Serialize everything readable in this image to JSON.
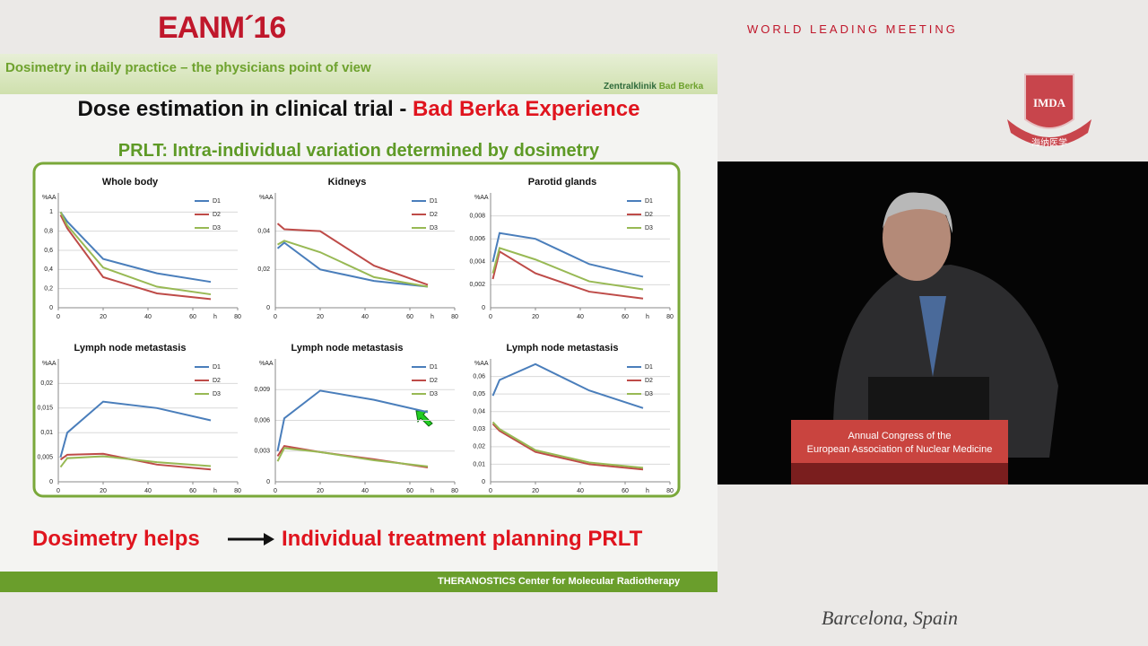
{
  "header": {
    "brand": "EANM´16",
    "tagline": "WORLD LEADING MEETING",
    "logo": "IMDA",
    "logo_subtitle": "海纳医学"
  },
  "slide": {
    "topic": "Dosimetry in daily practice – the physicians point of view",
    "clinic": "Zentralklinik",
    "clinic_place": "Bad Berka",
    "title": "Dose estimation in clinical trial -",
    "title_highlight": "Bad Berka Experience",
    "subtitle": "PRLT: Intra-individual variation determined by dosimetry",
    "conclusion_left": "Dosimetry helps",
    "conclusion_right": "Individual treatment planning PRLT",
    "footer": "THERANOSTICS Center for Molecular Radiotherapy",
    "charts": [
      {
        "type": "line",
        "title": "Whole body",
        "ylabel": "%AA",
        "xlabel": "h",
        "x": [
          1,
          4,
          20,
          44,
          68
        ],
        "xlim": [
          0,
          80
        ],
        "xticks": [
          0,
          20,
          40,
          60,
          80
        ],
        "ylim": [
          0,
          1.2
        ],
        "yticks": [
          0,
          {
            "value": 0.2,
            "label": "0,2"
          },
          {
            "value": 0.4,
            "label": "0,4"
          },
          {
            "value": 0.6,
            "label": "0,6"
          },
          {
            "value": 0.8,
            "label": "0,8"
          },
          1
        ],
        "series": [
          {
            "name": "D1",
            "color": "#4a7ebb",
            "values": [
              1,
              0.9,
              0.51,
              0.36,
              0.27
            ]
          },
          {
            "name": "D2",
            "color": "#be4b48",
            "values": [
              0.97,
              0.83,
              0.32,
              0.15,
              0.09
            ]
          },
          {
            "name": "D3",
            "color": "#98b954",
            "values": [
              1,
              0.86,
              0.42,
              0.22,
              0.14
            ]
          }
        ]
      },
      {
        "type": "line",
        "title": "Kidneys",
        "ylabel": "%AA",
        "xlabel": "h",
        "x": [
          1,
          4,
          20,
          44,
          68
        ],
        "xlim": [
          0,
          80
        ],
        "xticks": [
          0,
          20,
          40,
          60,
          80
        ],
        "ylim": [
          0,
          0.06
        ],
        "yticks": [
          0,
          {
            "value": 0.02,
            "label": "0,02"
          },
          {
            "value": 0.04,
            "label": "0,04"
          }
        ],
        "series": [
          {
            "name": "D1",
            "color": "#4a7ebb",
            "values": [
              0.031,
              0.034,
              0.02,
              0.014,
              0.011
            ]
          },
          {
            "name": "D2",
            "color": "#be4b48",
            "values": [
              0.044,
              0.041,
              0.04,
              0.022,
              0.012
            ]
          },
          {
            "name": "D3",
            "color": "#98b954",
            "values": [
              0.033,
              0.035,
              0.029,
              0.016,
              0.011
            ]
          }
        ]
      },
      {
        "type": "line",
        "title": "Parotid glands",
        "ylabel": "%AA",
        "xlabel": "h",
        "x": [
          1,
          4,
          20,
          44,
          68
        ],
        "xlim": [
          0,
          80
        ],
        "xticks": [
          0,
          20,
          40,
          60,
          80
        ],
        "ylim": [
          0,
          0.01
        ],
        "yticks": [
          0,
          {
            "value": 0.002,
            "label": "0,002"
          },
          {
            "value": 0.004,
            "label": "0,004"
          },
          {
            "value": 0.006,
            "label": "0,006"
          },
          {
            "value": 0.008,
            "label": "0,008"
          }
        ],
        "series": [
          {
            "name": "D1",
            "color": "#4a7ebb",
            "values": [
              0.004,
              0.0065,
              0.006,
              0.0038,
              0.0027
            ]
          },
          {
            "name": "D2",
            "color": "#be4b48",
            "values": [
              0.0025,
              0.0049,
              0.003,
              0.0014,
              0.0008
            ]
          },
          {
            "name": "D3",
            "color": "#98b954",
            "values": [
              0.003,
              0.0052,
              0.0042,
              0.0023,
              0.0016
            ]
          }
        ]
      },
      {
        "type": "line",
        "title": "Lymph node metastasis",
        "ylabel": "%AA",
        "xlabel": "h",
        "x": [
          1,
          4,
          20,
          44,
          68
        ],
        "xlim": [
          0,
          80
        ],
        "xticks": [
          0,
          20,
          40,
          60,
          80
        ],
        "ylim": [
          0,
          0.025
        ],
        "yticks": [
          0,
          {
            "value": 0.005,
            "label": "0,005"
          },
          {
            "value": 0.01,
            "label": "0,01"
          },
          {
            "value": 0.015,
            "label": "0,015"
          },
          {
            "value": 0.02,
            "label": "0,02"
          }
        ],
        "series": [
          {
            "name": "D1",
            "color": "#4a7ebb",
            "values": [
              0.005,
              0.01,
              0.0163,
              0.015,
              0.0125
            ]
          },
          {
            "name": "D2",
            "color": "#be4b48",
            "values": [
              0.0045,
              0.0055,
              0.0057,
              0.0035,
              0.0025
            ]
          },
          {
            "name": "D3",
            "color": "#98b954",
            "values": [
              0.003,
              0.0048,
              0.0052,
              0.004,
              0.0032
            ]
          }
        ]
      },
      {
        "type": "line",
        "title": "Lymph node metastasis",
        "ylabel": "%AA",
        "xlabel": "h",
        "x": [
          1,
          4,
          20,
          44,
          68
        ],
        "xlim": [
          0,
          80
        ],
        "xticks": [
          0,
          20,
          40,
          60,
          80
        ],
        "ylim": [
          0,
          0.012
        ],
        "yticks": [
          0,
          {
            "value": 0.003,
            "label": "0,003"
          },
          {
            "value": 0.006,
            "label": "0,006"
          },
          {
            "value": 0.009,
            "label": "0,009"
          }
        ],
        "series": [
          {
            "name": "D1",
            "color": "#4a7ebb",
            "values": [
              0.003,
              0.0062,
              0.0089,
              0.008,
              0.0068
            ]
          },
          {
            "name": "D2",
            "color": "#be4b48",
            "values": [
              0.0025,
              0.0035,
              0.0029,
              0.0022,
              0.0014
            ]
          },
          {
            "name": "D3",
            "color": "#98b954",
            "values": [
              0.002,
              0.0033,
              0.0029,
              0.0021,
              0.0015
            ]
          }
        ]
      },
      {
        "type": "line",
        "title": "Lymph node metastasis",
        "ylabel": "%AA",
        "xlabel": "h",
        "x": [
          1,
          4,
          20,
          44,
          68
        ],
        "xlim": [
          0,
          80
        ],
        "xticks": [
          0,
          20,
          40,
          60,
          80
        ],
        "ylim": [
          0,
          0.07
        ],
        "yticks": [
          0,
          {
            "value": 0.01,
            "label": "0,01"
          },
          {
            "value": 0.02,
            "label": "0,02"
          },
          {
            "value": 0.03,
            "label": "0,03"
          },
          {
            "value": 0.04,
            "label": "0,04"
          },
          {
            "value": 0.05,
            "label": "0,05"
          },
          {
            "value": 0.06,
            "label": "0,06"
          }
        ],
        "series": [
          {
            "name": "D1",
            "color": "#4a7ebb",
            "values": [
              0.049,
              0.058,
              0.067,
              0.052,
              0.042
            ]
          },
          {
            "name": "D2",
            "color": "#be4b48",
            "values": [
              0.033,
              0.029,
              0.017,
              0.01,
              0.007
            ]
          },
          {
            "name": "D3",
            "color": "#98b954",
            "values": [
              0.034,
              0.03,
              0.018,
              0.011,
              0.008
            ]
          }
        ]
      }
    ]
  },
  "video": {
    "podium_line1": "Annual Congress of the",
    "podium_line2": "European Association of Nuclear Medicine",
    "location": "Barcelona, Spain"
  }
}
